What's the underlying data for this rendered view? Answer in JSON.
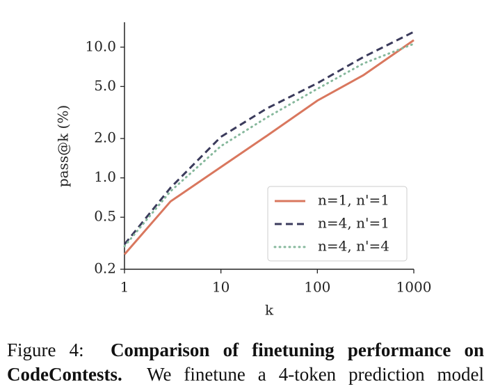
{
  "chart_data": {
    "type": "line",
    "x_label": "k",
    "y_label": "pass@k (%)",
    "log_x": true,
    "log_y": true,
    "x": [
      1,
      3,
      10,
      30,
      100,
      300,
      1000
    ],
    "series": [
      {
        "name": "n=1, n'=1",
        "color": "#d9775e",
        "style": "solid",
        "values": [
          0.26,
          0.66,
          1.21,
          2.1,
          3.9,
          6.1,
          11.3
        ]
      },
      {
        "name": "n=4, n'=1",
        "color": "#3b3b5c",
        "style": "dashed",
        "values": [
          0.31,
          0.84,
          2.06,
          3.4,
          5.3,
          8.4,
          13.1
        ]
      },
      {
        "name": "n=4, n'=4",
        "color": "#86b89c",
        "style": "dotted",
        "values": [
          0.3,
          0.79,
          1.75,
          2.9,
          4.8,
          7.5,
          10.6
        ]
      }
    ],
    "xlim": [
      1,
      1000
    ],
    "ylim": [
      0.2,
      15.5
    ],
    "xticks": [
      1,
      10,
      100,
      1000
    ],
    "yticks": [
      0.2,
      0.5,
      {
        "value": 1,
        "label": "1.0"
      },
      {
        "value": 2,
        "label": "2.0"
      },
      {
        "value": 5,
        "label": "5.0"
      },
      {
        "value": 10,
        "label": "10.0"
      }
    ],
    "legend": "lower right"
  },
  "caption": {
    "label": "Figure 4:",
    "title": "Comparison of finetuning performance on CodeContests.",
    "text": "We finetune a 4-token prediction model"
  }
}
